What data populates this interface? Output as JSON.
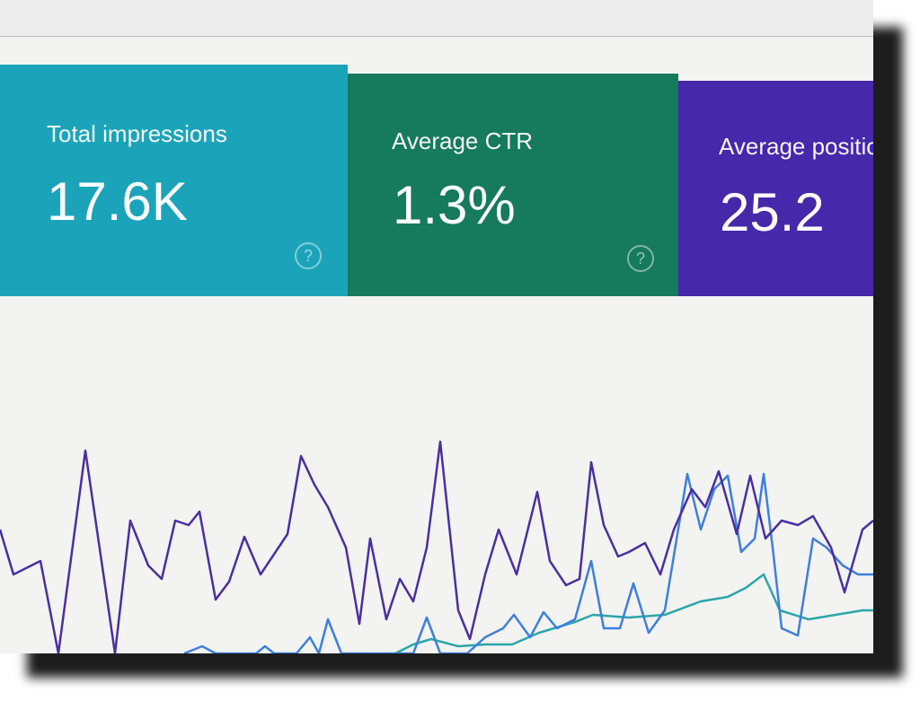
{
  "cards": [
    {
      "label": "Total impressions",
      "value": "17.6K"
    },
    {
      "label": "Average CTR",
      "value": "1.3%"
    },
    {
      "label": "Average position",
      "value": "25.2"
    }
  ]
}
